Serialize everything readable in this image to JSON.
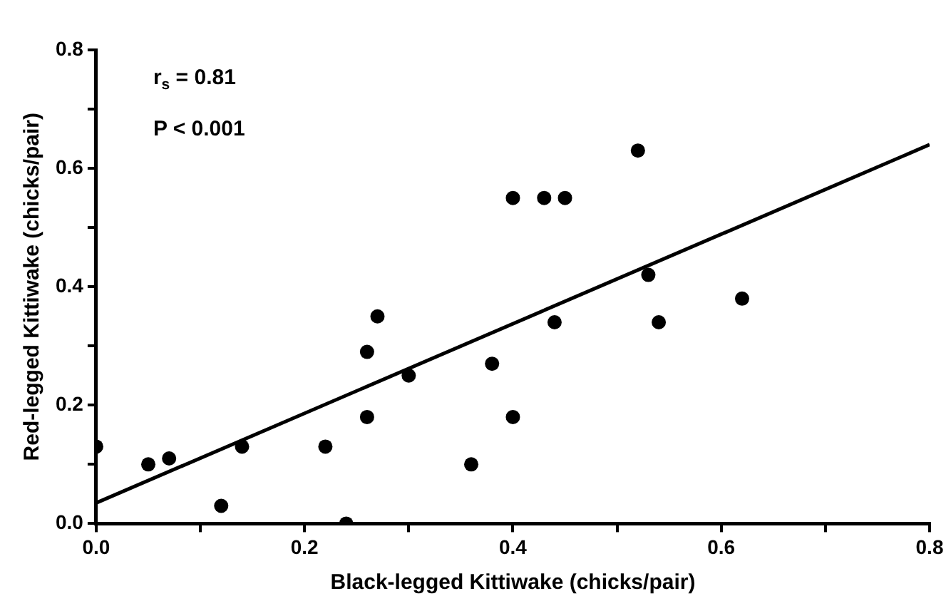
{
  "chart_data": {
    "type": "scatter",
    "xlabel": "Black-legged Kittiwake (chicks/pair)",
    "ylabel": "Red-legged Kittiwake (chicks/pair)",
    "xlim": [
      0,
      0.8
    ],
    "xticks": [
      {
        "value": 0,
        "label": "0.0"
      },
      {
        "value": 0.1,
        "label": null
      },
      {
        "value": 0.2,
        "label": "0.2"
      },
      {
        "value": 0.3,
        "label": null
      },
      {
        "value": 0.4,
        "label": "0.4"
      },
      {
        "value": 0.5,
        "label": null
      },
      {
        "value": 0.6,
        "label": "0.6"
      },
      {
        "value": 0.7,
        "label": null
      },
      {
        "value": 0.8,
        "label": "0.8"
      }
    ],
    "ylim": [
      0,
      0.8
    ],
    "yticks": [
      {
        "value": 0,
        "label": "0.0"
      },
      {
        "value": 0.1,
        "label": null
      },
      {
        "value": 0.2,
        "label": "0.2"
      },
      {
        "value": 0.3,
        "label": null
      },
      {
        "value": 0.4,
        "label": "0.4"
      },
      {
        "value": 0.5,
        "label": null
      },
      {
        "value": 0.6,
        "label": "0.6"
      },
      {
        "value": 0.7,
        "label": null
      },
      {
        "value": 0.8,
        "label": "0.8"
      }
    ],
    "grid": false,
    "legend": false,
    "marker": "circle",
    "annotations": [
      "r$_{s}$ = 0.81",
      "P < 0.001"
    ],
    "series": [
      {
        "color": "#000000",
        "x": [
          0,
          0.05,
          0.07,
          0.12,
          0.14,
          0.22,
          0.24,
          0.26,
          0.26,
          0.27,
          0.3,
          0.36,
          0.38,
          0.4,
          0.4,
          0.43,
          0.45,
          0.44,
          0.52,
          0.53,
          0.54,
          0.62
        ],
        "values": [
          0.13,
          0.1,
          0.11,
          0.03,
          0.13,
          0.13,
          0,
          0.18,
          0.29,
          0.35,
          0.25,
          0.1,
          0.27,
          0.18,
          0.55,
          0.55,
          0.55,
          0.34,
          0.63,
          0.42,
          0.34,
          0.38
        ]
      },
      {
        "type": "line",
        "color": "#000000",
        "x": [
          0,
          0.8
        ],
        "values": [
          0.035,
          0.64
        ],
        "marker": "none",
        "line_style": "solid"
      }
    ]
  }
}
